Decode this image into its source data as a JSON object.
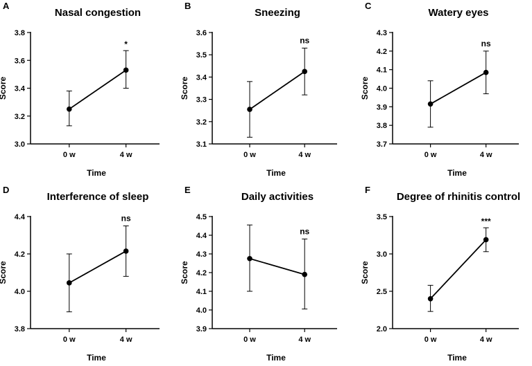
{
  "chart_data": [
    {
      "panel": "A",
      "title": "Nasal congestion",
      "type": "line",
      "xlabel": "Time",
      "ylabel": "Score",
      "categories": [
        "0 w",
        "4 w"
      ],
      "ylim": [
        3.0,
        3.8
      ],
      "yticks": [
        "3.0",
        "3.2",
        "3.4",
        "3.6",
        "3.8"
      ],
      "series": [
        {
          "name": "Score",
          "values": [
            3.25,
            3.53
          ],
          "err_low": [
            3.13,
            3.4
          ],
          "err_high": [
            3.38,
            3.67
          ]
        }
      ],
      "significance": "*"
    },
    {
      "panel": "B",
      "title": "Sneezing",
      "type": "line",
      "xlabel": "Time",
      "ylabel": "Score",
      "categories": [
        "0 w",
        "4 w"
      ],
      "ylim": [
        3.1,
        3.6
      ],
      "yticks": [
        "3.1",
        "3.2",
        "3.3",
        "3.4",
        "3.5",
        "3.6"
      ],
      "series": [
        {
          "name": "Score",
          "values": [
            3.255,
            3.425
          ],
          "err_low": [
            3.13,
            3.32
          ],
          "err_high": [
            3.38,
            3.53
          ]
        }
      ],
      "significance": "ns"
    },
    {
      "panel": "C",
      "title": "Watery eyes",
      "type": "line",
      "xlabel": "Time",
      "ylabel": "Score",
      "categories": [
        "0 w",
        "4 w"
      ],
      "ylim": [
        3.7,
        4.3
      ],
      "yticks": [
        "3.7",
        "3.8",
        "3.9",
        "4.0",
        "4.1",
        "4.2",
        "4.3"
      ],
      "series": [
        {
          "name": "Score",
          "values": [
            3.915,
            4.085
          ],
          "err_low": [
            3.79,
            3.97
          ],
          "err_high": [
            4.04,
            4.2
          ]
        }
      ],
      "significance": "ns"
    },
    {
      "panel": "D",
      "title": "Interference of sleep",
      "type": "line",
      "xlabel": "Time",
      "ylabel": "Score",
      "categories": [
        "0 w",
        "4 w"
      ],
      "ylim": [
        3.8,
        4.4
      ],
      "yticks": [
        "3.8",
        "4.0",
        "4.2",
        "4.4"
      ],
      "series": [
        {
          "name": "Score",
          "values": [
            4.045,
            4.215
          ],
          "err_low": [
            3.89,
            4.08
          ],
          "err_high": [
            4.2,
            4.35
          ]
        }
      ],
      "significance": "ns"
    },
    {
      "panel": "E",
      "title": "Daily activities",
      "type": "line",
      "xlabel": "Time",
      "ylabel": "Score",
      "categories": [
        "0 w",
        "4 w"
      ],
      "ylim": [
        3.9,
        4.5
      ],
      "yticks": [
        "3.9",
        "4.0",
        "4.1",
        "4.2",
        "4.3",
        "4.4",
        "4.5"
      ],
      "series": [
        {
          "name": "Score",
          "values": [
            4.275,
            4.19
          ],
          "err_low": [
            4.1,
            4.005
          ],
          "err_high": [
            4.455,
            4.38
          ]
        }
      ],
      "significance": "ns"
    },
    {
      "panel": "F",
      "title": "Degree of rhinitis control",
      "type": "line",
      "xlabel": "Time",
      "ylabel": "Score",
      "categories": [
        "0 w",
        "4 w"
      ],
      "ylim": [
        2.0,
        3.5
      ],
      "yticks": [
        "2.0",
        "2.5",
        "3.0",
        "3.5"
      ],
      "series": [
        {
          "name": "Score",
          "values": [
            2.4,
            3.19
          ],
          "err_low": [
            2.23,
            3.03
          ],
          "err_high": [
            2.58,
            3.35
          ]
        }
      ],
      "significance": "***"
    }
  ]
}
